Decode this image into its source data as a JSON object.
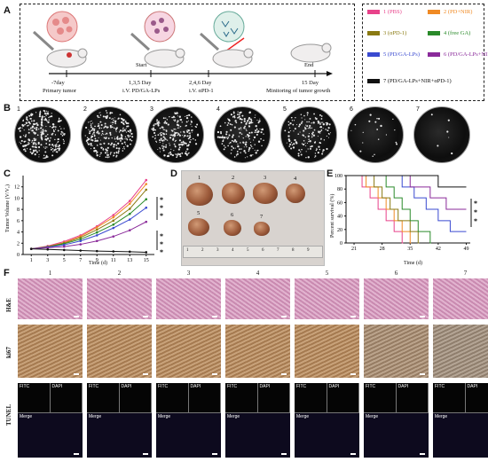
{
  "panels": {
    "a": "A",
    "b": "B",
    "c": "C",
    "d": "D",
    "e": "E",
    "f": "F"
  },
  "timeline": {
    "events": [
      {
        "top": "",
        "bottom": "-7day",
        "sub": "Primary tumor"
      },
      {
        "top": "Start",
        "bottom": "1,3,5 Day",
        "sub": "i.V. PD/GA-LPs"
      },
      {
        "top": "",
        "bottom": "2,4,6 Day",
        "sub": "i.V. αPD-1"
      },
      {
        "top": "End",
        "bottom": "15 Day",
        "sub": "Minitoring of tumor growth"
      }
    ]
  },
  "legend": [
    {
      "label": "1 (PBS)",
      "color": "#e8428a"
    },
    {
      "label": "2 (PD+NIR)",
      "color": "#f08a24"
    },
    {
      "label": "3 (αPD-1)",
      "color": "#8a7a12"
    },
    {
      "label": "4 (free GA)",
      "color": "#2a8a2a"
    },
    {
      "label": "5 (PD/GA-LPs)",
      "color": "#3a4ad0"
    },
    {
      "label": "6 (PD/GA-LPs+NIR)",
      "color": "#8a2a9a"
    },
    {
      "label": "7 (PD/GA-LPs+NIR+αPD-1)",
      "color": "#111111"
    }
  ],
  "dish_numbers": [
    "1",
    "2",
    "3",
    "4",
    "5",
    "6",
    "7"
  ],
  "tumor_numbers": [
    "1",
    "2",
    "3",
    "4",
    "5",
    "6",
    "7"
  ],
  "ruler_numbers": [
    "1",
    "2",
    "3",
    "4",
    "5",
    "6",
    "7",
    "8",
    "9"
  ],
  "chart_data": [
    {
      "type": "line",
      "xlabel": "Time (d)",
      "ylabel": "Tumor Volume (V/V₀)",
      "x": [
        1,
        3,
        5,
        7,
        9,
        11,
        13,
        15
      ],
      "xlim": [
        0,
        16
      ],
      "ylim": [
        0,
        14
      ],
      "yticks": [
        0,
        2,
        4,
        6,
        8,
        10,
        12
      ],
      "series": [
        {
          "name": "1 (PBS)",
          "color": "#e8428a",
          "values": [
            1,
            1.5,
            2.3,
            3.4,
            5.0,
            7.0,
            9.5,
            13.2
          ]
        },
        {
          "name": "2 (PD+NIR)",
          "color": "#f08a24",
          "values": [
            1,
            1.4,
            2.1,
            3.2,
            4.8,
            6.6,
            9.0,
            12.5
          ]
        },
        {
          "name": "3 (αPD-1)",
          "color": "#8a7a12",
          "values": [
            1,
            1.4,
            2.0,
            3.0,
            4.4,
            6.0,
            8.1,
            11.5
          ]
        },
        {
          "name": "4 (free GA)",
          "color": "#2a8a2a",
          "values": [
            1,
            1.3,
            1.9,
            2.7,
            3.9,
            5.3,
            7.2,
            9.8
          ]
        },
        {
          "name": "5 (PD/GA-LPs)",
          "color": "#3a4ad0",
          "values": [
            1,
            1.3,
            1.7,
            2.4,
            3.4,
            4.7,
            6.2,
            8.3
          ]
        },
        {
          "name": "6 (PD/GA-LPs+NIR)",
          "color": "#8a2a9a",
          "values": [
            1,
            1.2,
            1.4,
            1.8,
            2.4,
            3.2,
            4.3,
            5.8
          ]
        },
        {
          "name": "7 (PD/GA-LPs+NIR+αPD-1)",
          "color": "#111111",
          "values": [
            1,
            0.9,
            0.8,
            0.7,
            0.6,
            0.55,
            0.5,
            0.4
          ]
        }
      ],
      "significance": [
        "*",
        "*",
        "*",
        "*",
        "*",
        "*"
      ]
    },
    {
      "type": "line",
      "step": true,
      "xlabel": "Time (d)",
      "ylabel": "Percent survival (%)",
      "xticks": [
        21,
        28,
        35,
        42,
        49
      ],
      "xlim": [
        19,
        50
      ],
      "ylim": [
        0,
        100
      ],
      "yticks": [
        0,
        20,
        40,
        60,
        80,
        100
      ],
      "series": [
        {
          "name": "1 (PBS)",
          "color": "#e8428a",
          "steps": [
            [
              19,
              100
            ],
            [
              23,
              83
            ],
            [
              25,
              67
            ],
            [
              27,
              50
            ],
            [
              29,
              33
            ],
            [
              31,
              17
            ],
            [
              33,
              0
            ]
          ]
        },
        {
          "name": "2 (PD+NIR)",
          "color": "#f08a24",
          "steps": [
            [
              19,
              100
            ],
            [
              24,
              83
            ],
            [
              27,
              67
            ],
            [
              29,
              50
            ],
            [
              31,
              33
            ],
            [
              33,
              17
            ],
            [
              35,
              0
            ]
          ]
        },
        {
          "name": "3 (αPD-1)",
          "color": "#8a7a12",
          "steps": [
            [
              19,
              100
            ],
            [
              26,
              83
            ],
            [
              28,
              67
            ],
            [
              30,
              50
            ],
            [
              32,
              33
            ],
            [
              35,
              17
            ],
            [
              37,
              0
            ]
          ]
        },
        {
          "name": "4 (free GA)",
          "color": "#2a8a2a",
          "steps": [
            [
              19,
              100
            ],
            [
              29,
              83
            ],
            [
              31,
              67
            ],
            [
              33,
              50
            ],
            [
              35,
              33
            ],
            [
              37,
              17
            ],
            [
              40,
              0
            ]
          ]
        },
        {
          "name": "5 (PD/GA-LPs)",
          "color": "#3a4ad0",
          "steps": [
            [
              19,
              100
            ],
            [
              33,
              83
            ],
            [
              36,
              67
            ],
            [
              39,
              50
            ],
            [
              42,
              33
            ],
            [
              45,
              17
            ],
            [
              49,
              17
            ]
          ]
        },
        {
          "name": "6 (PD/GA-LPs+NIR)",
          "color": "#8a2a9a",
          "steps": [
            [
              19,
              100
            ],
            [
              35,
              83
            ],
            [
              40,
              67
            ],
            [
              44,
              50
            ],
            [
              49,
              50
            ]
          ]
        },
        {
          "name": "7 (PD/GA-LPs+NIR+αPD-1)",
          "color": "#111111",
          "steps": [
            [
              19,
              100
            ],
            [
              42,
              83
            ],
            [
              49,
              83
            ]
          ]
        }
      ],
      "significance": [
        "*",
        "*",
        "*"
      ]
    }
  ],
  "histology": {
    "columns": [
      "1",
      "2",
      "3",
      "4",
      "5",
      "6",
      "7"
    ],
    "rows": [
      "H&E",
      "ki67",
      "TUNEL"
    ],
    "tunel_labels": {
      "fitc": "FITC",
      "dapi": "DAPI",
      "merge": "Merge"
    }
  }
}
